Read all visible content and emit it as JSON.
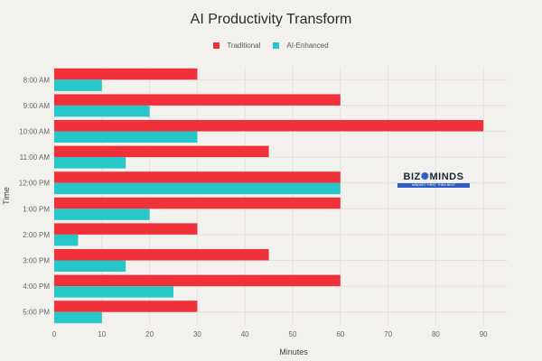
{
  "chart_data": {
    "type": "bar",
    "orientation": "horizontal",
    "title": "AI Productivity Transform",
    "xlabel": "Minutes",
    "ylabel": "Time",
    "xlim": [
      0,
      95
    ],
    "xticks": [
      0,
      10,
      20,
      30,
      40,
      50,
      60,
      70,
      80,
      90
    ],
    "grid": true,
    "legend_placement": "top-center",
    "categories": [
      "8:00 AM",
      "9:00 AM",
      "10:00 AM",
      "11:00 AM",
      "12:00 PM",
      "1:00 PM",
      "2:00 PM",
      "3:00 PM",
      "4:00 PM",
      "5:00 PM"
    ],
    "series": [
      {
        "name": "Traditional",
        "color": "#f0313a",
        "values": [
          30,
          60,
          90,
          45,
          60,
          60,
          30,
          45,
          60,
          30
        ]
      },
      {
        "name": "AI-Enhanced",
        "color": "#27c6c9",
        "values": [
          10,
          20,
          30,
          15,
          60,
          20,
          5,
          15,
          25,
          10
        ]
      }
    ]
  },
  "logo": {
    "name": "BIZ MINDS",
    "tagline": "MINDSET FIRST, THEN NEXT"
  }
}
